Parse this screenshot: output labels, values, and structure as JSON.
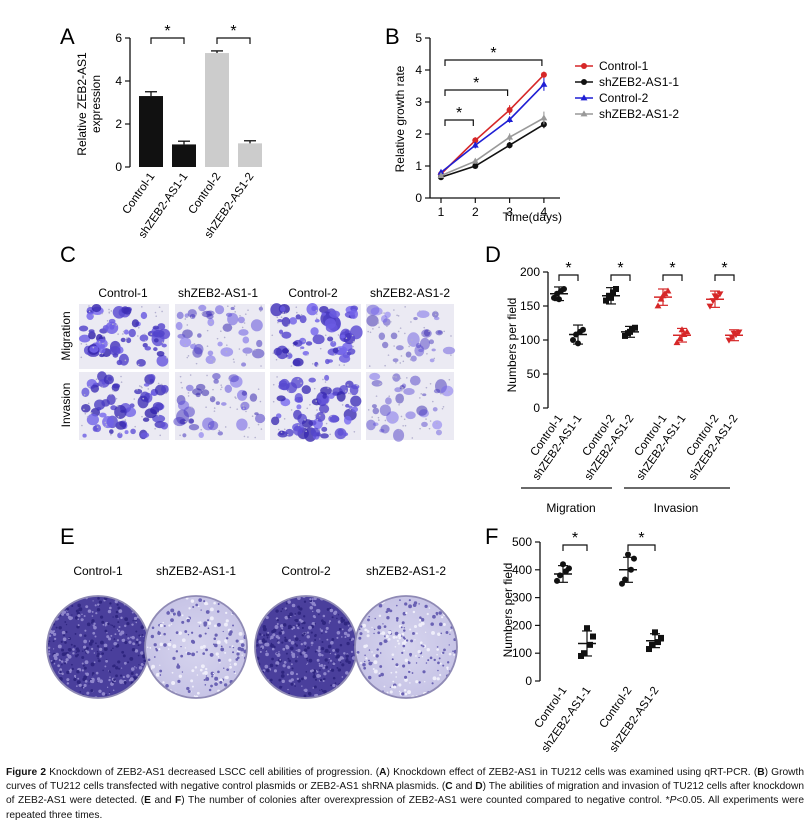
{
  "panels": {
    "A": {
      "letter": "A",
      "chart_data": {
        "type": "bar",
        "categories": [
          "Control-1",
          "shZEB2-AS1-1",
          "Control-2",
          "shZEB2-AS1-2"
        ],
        "values": [
          3.3,
          1.05,
          5.3,
          1.1
        ],
        "errors": [
          0.2,
          0.15,
          0.1,
          0.12
        ],
        "colors": [
          "#111111",
          "#111111",
          "#cccccc",
          "#cccccc"
        ],
        "ylabel_line1": "Relative  ZEB2-AS1",
        "ylabel_line2": "expression",
        "ylim": [
          0,
          6
        ],
        "yticks": [
          "0",
          "2",
          "4",
          "6"
        ],
        "sig": [
          {
            "from": 0,
            "to": 1,
            "label": "*"
          },
          {
            "from": 2,
            "to": 3,
            "label": "*"
          }
        ]
      }
    },
    "B": {
      "letter": "B",
      "chart_data": {
        "type": "line",
        "x": [
          1,
          2,
          3,
          4
        ],
        "xticks": [
          "1",
          "2",
          "3",
          "4"
        ],
        "xlabel": "Time(days)",
        "ylabel": "Relative growth rate",
        "ylim": [
          0,
          5
        ],
        "yticks": [
          "0",
          "1",
          "2",
          "3",
          "4",
          "5"
        ],
        "series": [
          {
            "name": "Control-1",
            "values": [
              0.75,
              1.8,
              2.75,
              3.85
            ],
            "errors": [
              0.05,
              0.1,
              0.15,
              0.1
            ],
            "color": "#d62728",
            "marker": "circle"
          },
          {
            "name": "shZEB2-AS1-1",
            "values": [
              0.65,
              1.0,
              1.65,
              2.3
            ],
            "errors": [
              0.05,
              0.06,
              0.1,
              0.12
            ],
            "color": "#111111",
            "marker": "circle"
          },
          {
            "name": "Control-2",
            "values": [
              0.8,
              1.65,
              2.45,
              3.55
            ],
            "errors": [
              0.05,
              0.1,
              0.1,
              0.2
            ],
            "color": "#1f1fd4",
            "marker": "triangle"
          },
          {
            "name": "shZEB2-AS1-2",
            "values": [
              0.7,
              1.15,
              1.9,
              2.5
            ],
            "errors": [
              0.05,
              0.08,
              0.12,
              0.2
            ],
            "color": "#999999",
            "marker": "triangle"
          }
        ],
        "sig": [
          {
            "x": 2,
            "label": "*"
          },
          {
            "x": 3,
            "label": "*"
          },
          {
            "x": 4,
            "label": "*"
          }
        ]
      }
    },
    "C": {
      "letter": "C",
      "columns": [
        "Control-1",
        "shZEB2-AS1-1",
        "Control-2",
        "shZEB2-AS1-2"
      ],
      "rows": [
        "Migration",
        "Invasion"
      ],
      "density": [
        [
          0.85,
          0.35,
          0.85,
          0.25
        ],
        [
          0.8,
          0.35,
          0.8,
          0.25
        ]
      ]
    },
    "D": {
      "letter": "D",
      "chart_data": {
        "type": "scatter",
        "categories": [
          "Control-1",
          "shZEB2-AS1-1",
          "Control-2",
          "shZEB2-AS1-2",
          "Control-1",
          "shZEB2-AS1-1",
          "Control-2",
          "shZEB2-AS1-2"
        ],
        "groups": [
          {
            "color": "#111111",
            "marker": "circle",
            "mean": 168,
            "sd": 10,
            "points": [
              162,
              168,
              172,
              175,
              160
            ]
          },
          {
            "color": "#111111",
            "marker": "circle",
            "mean": 108,
            "sd": 14,
            "points": [
              100,
              108,
              112,
              115,
              95
            ]
          },
          {
            "color": "#111111",
            "marker": "square",
            "mean": 165,
            "sd": 12,
            "points": [
              158,
              165,
              170,
              175,
              162
            ]
          },
          {
            "color": "#111111",
            "marker": "square",
            "mean": 112,
            "sd": 8,
            "points": [
              106,
              110,
              116,
              118,
              112
            ]
          },
          {
            "color": "#d62728",
            "marker": "triangle",
            "mean": 163,
            "sd": 12,
            "points": [
              150,
              160,
              168,
              172,
              165
            ]
          },
          {
            "color": "#d62728",
            "marker": "triangle",
            "mean": 107,
            "sd": 10,
            "points": [
              96,
              102,
              108,
              112,
              115
            ]
          },
          {
            "color": "#d62728",
            "marker": "triangle-down",
            "mean": 160,
            "sd": 12,
            "points": [
              150,
              158,
              163,
              168,
              165
            ]
          },
          {
            "color": "#d62728",
            "marker": "triangle-down",
            "mean": 107,
            "sd": 8,
            "points": [
              100,
              104,
              108,
              112,
              110
            ]
          }
        ],
        "ylabel": "Numbers per field",
        "ylim": [
          0,
          200
        ],
        "yticks": [
          "0",
          "50",
          "100",
          "150",
          "200"
        ],
        "group_labels": [
          "Migration",
          "Invasion"
        ],
        "sig": [
          {
            "from": 0,
            "to": 1,
            "label": "*"
          },
          {
            "from": 2,
            "to": 3,
            "label": "*"
          },
          {
            "from": 4,
            "to": 5,
            "label": "*"
          },
          {
            "from": 6,
            "to": 7,
            "label": "*"
          }
        ]
      }
    },
    "E": {
      "letter": "E",
      "columns": [
        "Control-1",
        "shZEB2-AS1-1",
        "Control-2",
        "shZEB2-AS1-2"
      ],
      "density": [
        0.9,
        0.35,
        0.95,
        0.4
      ]
    },
    "F": {
      "letter": "F",
      "chart_data": {
        "type": "scatter",
        "categories": [
          "Control-1",
          "shZEB2-AS1-1",
          "Control-2",
          "shZEB2-AS1-2"
        ],
        "groups": [
          {
            "color": "#111111",
            "marker": "circle",
            "mean": 385,
            "sd": 30,
            "points": [
              360,
              380,
              395,
              405,
              420
            ]
          },
          {
            "color": "#111111",
            "marker": "square",
            "mean": 135,
            "sd": 45,
            "points": [
              90,
              100,
              130,
              160,
              190
            ]
          },
          {
            "color": "#111111",
            "marker": "circle",
            "mean": 400,
            "sd": 45,
            "points": [
              350,
              365,
              400,
              440,
              455
            ]
          },
          {
            "color": "#111111",
            "marker": "square",
            "mean": 145,
            "sd": 25,
            "points": [
              115,
              130,
              140,
              155,
              175
            ]
          }
        ],
        "ylabel": "Numbers per field",
        "ylim": [
          0,
          500
        ],
        "yticks": [
          "0",
          "100",
          "200",
          "300",
          "400",
          "500"
        ],
        "sig": [
          {
            "from": 0,
            "to": 1,
            "label": "*"
          },
          {
            "from": 2,
            "to": 3,
            "label": "*"
          }
        ]
      }
    }
  },
  "caption": {
    "fig": "Figure 2",
    "intro": " Knockdown of ZEB2-AS1 decreased LSCC cell abilities of progression. (",
    "a": "A",
    "a_text": ") Knockdown effect of ZEB2-AS1 in TU212 cells was examined using qRT-PCR. (",
    "b": "B",
    "b_text": ") Growth curves of TU212 cells transfected with negative control plasmids or ZEB2-AS1 shRNA plasmids. (",
    "c": "C",
    "and1": " and ",
    "d": "D",
    "cd_text": ") The abilities of migration and invasion of TU212 cells after knockdown of ZEB2-AS1 were detected. (",
    "e": "E",
    "and2": " and ",
    "f": "F",
    "ef_text": ") The number of colonies after overexpression of ZEB2-AS1 were counted compared to negative control. *",
    "p": "P",
    "end": "<0.05. All experiments were repeated three times."
  }
}
